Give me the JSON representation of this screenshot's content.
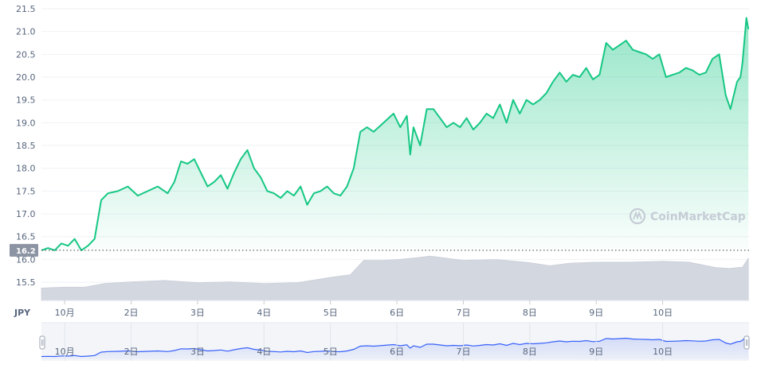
{
  "chart_data": {
    "type": "area",
    "currency": "JPY",
    "watermark": "CoinMarketCap",
    "baseline_label": "16.2",
    "baseline_value": 16.2,
    "ylim": [
      15.1,
      21.5
    ],
    "yticks": [
      "15.5",
      "16.0",
      "16.5",
      "17.0",
      "17.5",
      "18.0",
      "18.5",
      "19.0",
      "19.5",
      "20.0",
      "20.5",
      "21.0",
      "21.5"
    ],
    "ytick_values": [
      15.5,
      16.0,
      16.5,
      17.0,
      17.5,
      18.0,
      18.5,
      19.0,
      19.5,
      20.0,
      20.5,
      21.0,
      21.5
    ],
    "xticks": [
      "10月",
      "2日",
      "3日",
      "4日",
      "5日",
      "6日",
      "7日",
      "8日",
      "9日",
      "10日"
    ],
    "xtick_days": [
      1,
      2,
      3,
      4,
      5,
      6,
      7,
      8,
      9,
      10
    ],
    "xlim_days": [
      0.65,
      11.3
    ],
    "series": [
      {
        "color": "#16c784",
        "x": [
          0.65,
          0.75,
          0.85,
          0.95,
          1.05,
          1.15,
          1.25,
          1.35,
          1.45,
          1.55,
          1.65,
          1.8,
          1.95,
          2.1,
          2.25,
          2.4,
          2.55,
          2.65,
          2.75,
          2.85,
          2.95,
          3.05,
          3.15,
          3.25,
          3.35,
          3.45,
          3.55,
          3.65,
          3.75,
          3.85,
          3.95,
          4.05,
          4.15,
          4.25,
          4.35,
          4.45,
          4.55,
          4.65,
          4.75,
          4.85,
          4.95,
          5.05,
          5.15,
          5.25,
          5.35,
          5.45,
          5.55,
          5.65,
          5.8,
          5.95,
          6.05,
          6.15,
          6.2,
          6.25,
          6.35,
          6.45,
          6.55,
          6.65,
          6.75,
          6.85,
          6.95,
          7.05,
          7.15,
          7.25,
          7.35,
          7.45,
          7.55,
          7.65,
          7.75,
          7.85,
          7.95,
          8.05,
          8.15,
          8.25,
          8.35,
          8.45,
          8.55,
          8.65,
          8.75,
          8.85,
          8.95,
          9.05,
          9.15,
          9.25,
          9.35,
          9.45,
          9.55,
          9.65,
          9.75,
          9.85,
          9.95,
          10.05,
          10.15,
          10.25,
          10.35,
          10.45,
          10.55,
          10.65,
          10.75,
          10.85,
          10.95,
          11.02,
          11.07,
          11.12,
          11.17,
          11.2,
          11.23,
          11.26,
          11.29
        ],
        "values": [
          16.2,
          16.25,
          16.2,
          16.35,
          16.3,
          16.45,
          16.2,
          16.3,
          16.45,
          17.3,
          17.45,
          17.5,
          17.6,
          17.4,
          17.5,
          17.6,
          17.45,
          17.7,
          18.15,
          18.1,
          18.2,
          17.9,
          17.6,
          17.7,
          17.85,
          17.55,
          17.9,
          18.2,
          18.4,
          18.0,
          17.8,
          17.5,
          17.45,
          17.35,
          17.5,
          17.4,
          17.6,
          17.2,
          17.45,
          17.5,
          17.6,
          17.45,
          17.4,
          17.6,
          18.0,
          18.8,
          18.9,
          18.8,
          19.0,
          19.2,
          18.9,
          19.15,
          18.3,
          18.9,
          18.5,
          19.3,
          19.3,
          19.1,
          18.9,
          19.0,
          18.9,
          19.1,
          18.85,
          19.0,
          19.2,
          19.1,
          19.4,
          19.0,
          19.5,
          19.2,
          19.5,
          19.4,
          19.5,
          19.65,
          19.9,
          20.1,
          19.9,
          20.05,
          20.0,
          20.2,
          19.95,
          20.05,
          20.75,
          20.6,
          20.7,
          20.8,
          20.6,
          20.55,
          20.5,
          20.4,
          20.5,
          20.0,
          20.05,
          20.1,
          20.2,
          20.15,
          20.05,
          20.1,
          20.4,
          20.5,
          19.6,
          19.3,
          19.6,
          19.9,
          20.0,
          20.3,
          20.8,
          21.3,
          21.05
        ]
      }
    ],
    "volume": {
      "x": [
        0.65,
        1.0,
        1.3,
        1.6,
        2.0,
        2.5,
        3.0,
        3.5,
        4.0,
        4.5,
        5.0,
        5.3,
        5.5,
        5.8,
        6.0,
        6.3,
        6.5,
        6.8,
        7.0,
        7.5,
        8.0,
        8.3,
        8.6,
        9.0,
        9.5,
        10.0,
        10.4,
        10.8,
        11.0,
        11.2,
        11.29
      ],
      "values": [
        0.28,
        0.3,
        0.3,
        0.38,
        0.42,
        0.45,
        0.4,
        0.42,
        0.38,
        0.4,
        0.52,
        0.58,
        0.9,
        0.9,
        0.92,
        0.96,
        1.0,
        0.94,
        0.9,
        0.92,
        0.85,
        0.78,
        0.84,
        0.86,
        0.86,
        0.88,
        0.86,
        0.74,
        0.72,
        0.75,
        0.95
      ]
    },
    "navigator": {
      "color": "#3861fb",
      "xticks": [
        "10月",
        "2日",
        "3日",
        "4日",
        "5日",
        "6日",
        "7日",
        "8日",
        "9日",
        "10日"
      ]
    }
  }
}
